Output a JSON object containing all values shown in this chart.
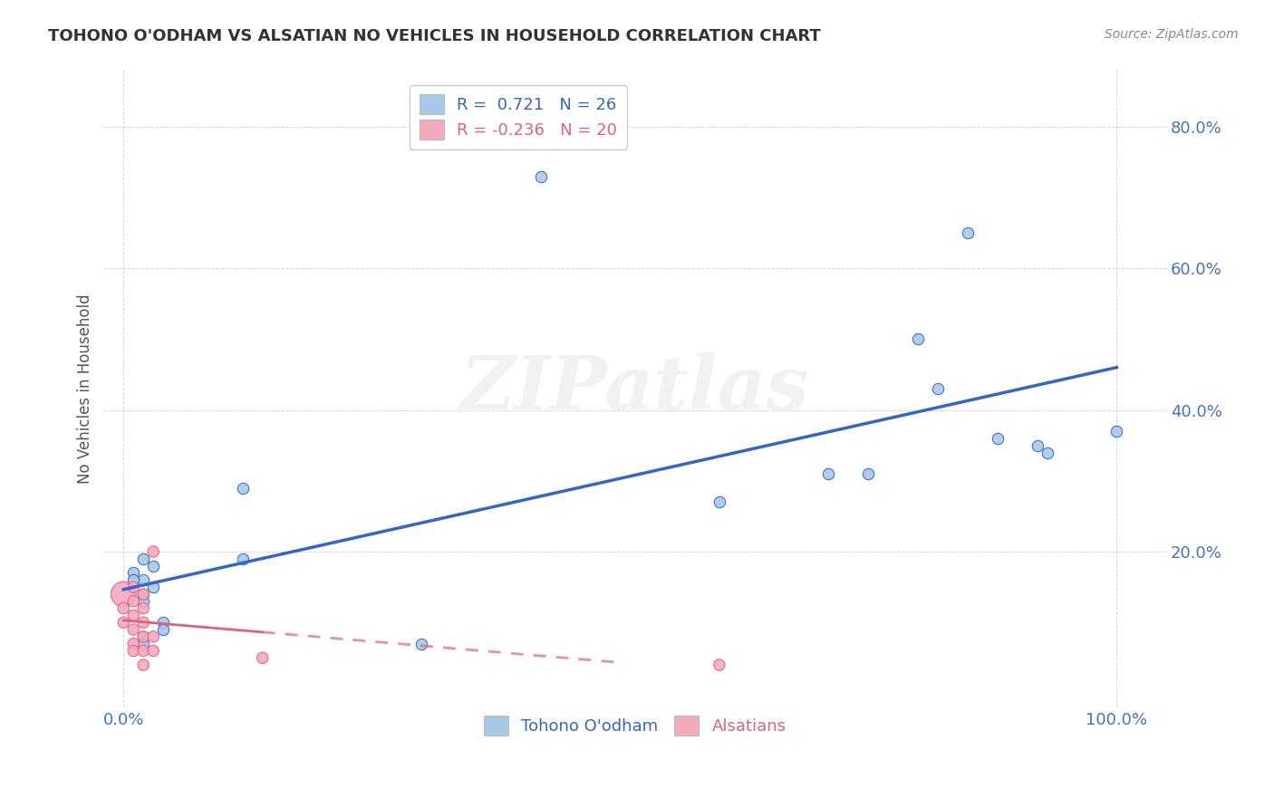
{
  "title": "TOHONO O'ODHAM VS ALSATIAN NO VEHICLES IN HOUSEHOLD CORRELATION CHART",
  "source": "Source: ZipAtlas.com",
  "tick_color": "#4472C4",
  "ylabel": "No Vehicles in Household",
  "xlim": [
    -0.02,
    1.05
  ],
  "ylim": [
    -0.02,
    0.88
  ],
  "x_ticks": [
    0.0,
    1.0
  ],
  "x_tick_labels": [
    "0.0%",
    "100.0%"
  ],
  "y_ticks": [
    0.2,
    0.4,
    0.6,
    0.8
  ],
  "y_tick_labels": [
    "20.0%",
    "40.0%",
    "60.0%",
    "80.0%"
  ],
  "tohono_color": "#A8C8E8",
  "alsatian_color": "#F4AABC",
  "tohono_line_color": "#3366CC",
  "alsatian_line_color": "#E06080",
  "legend_tohono_R": "0.721",
  "legend_tohono_N": "26",
  "legend_alsatian_R": "-0.236",
  "legend_alsatian_N": "20",
  "watermark": "ZIPatlas",
  "background_color": "#FFFFFF",
  "grid_color": "#CCCCCC",
  "tohono_points": [
    [
      0.02,
      0.16
    ],
    [
      0.03,
      0.15
    ],
    [
      0.03,
      0.18
    ],
    [
      0.01,
      0.17
    ],
    [
      0.01,
      0.16
    ],
    [
      0.02,
      0.14
    ],
    [
      0.02,
      0.13
    ],
    [
      0.02,
      0.19
    ],
    [
      0.02,
      0.08
    ],
    [
      0.02,
      0.07
    ],
    [
      0.04,
      0.1
    ],
    [
      0.04,
      0.09
    ],
    [
      0.12,
      0.29
    ],
    [
      0.12,
      0.19
    ],
    [
      0.3,
      0.07
    ],
    [
      0.42,
      0.73
    ],
    [
      0.6,
      0.27
    ],
    [
      0.71,
      0.31
    ],
    [
      0.75,
      0.31
    ],
    [
      0.8,
      0.5
    ],
    [
      0.82,
      0.43
    ],
    [
      0.85,
      0.65
    ],
    [
      0.88,
      0.36
    ],
    [
      0.92,
      0.35
    ],
    [
      0.93,
      0.34
    ],
    [
      1.0,
      0.37
    ]
  ],
  "alsatian_points": [
    [
      0.0,
      0.14
    ],
    [
      0.0,
      0.12
    ],
    [
      0.0,
      0.1
    ],
    [
      0.01,
      0.15
    ],
    [
      0.01,
      0.13
    ],
    [
      0.01,
      0.11
    ],
    [
      0.01,
      0.09
    ],
    [
      0.01,
      0.07
    ],
    [
      0.01,
      0.06
    ],
    [
      0.02,
      0.14
    ],
    [
      0.02,
      0.12
    ],
    [
      0.02,
      0.1
    ],
    [
      0.02,
      0.08
    ],
    [
      0.02,
      0.06
    ],
    [
      0.02,
      0.04
    ],
    [
      0.03,
      0.2
    ],
    [
      0.03,
      0.08
    ],
    [
      0.03,
      0.06
    ],
    [
      0.14,
      0.05
    ],
    [
      0.6,
      0.04
    ]
  ],
  "alsatian_sizes": [
    400,
    80,
    80,
    80,
    80,
    80,
    80,
    80,
    80,
    80,
    80,
    80,
    80,
    80,
    80,
    80,
    80,
    80,
    80,
    80
  ],
  "tohono_marker_size": 80
}
